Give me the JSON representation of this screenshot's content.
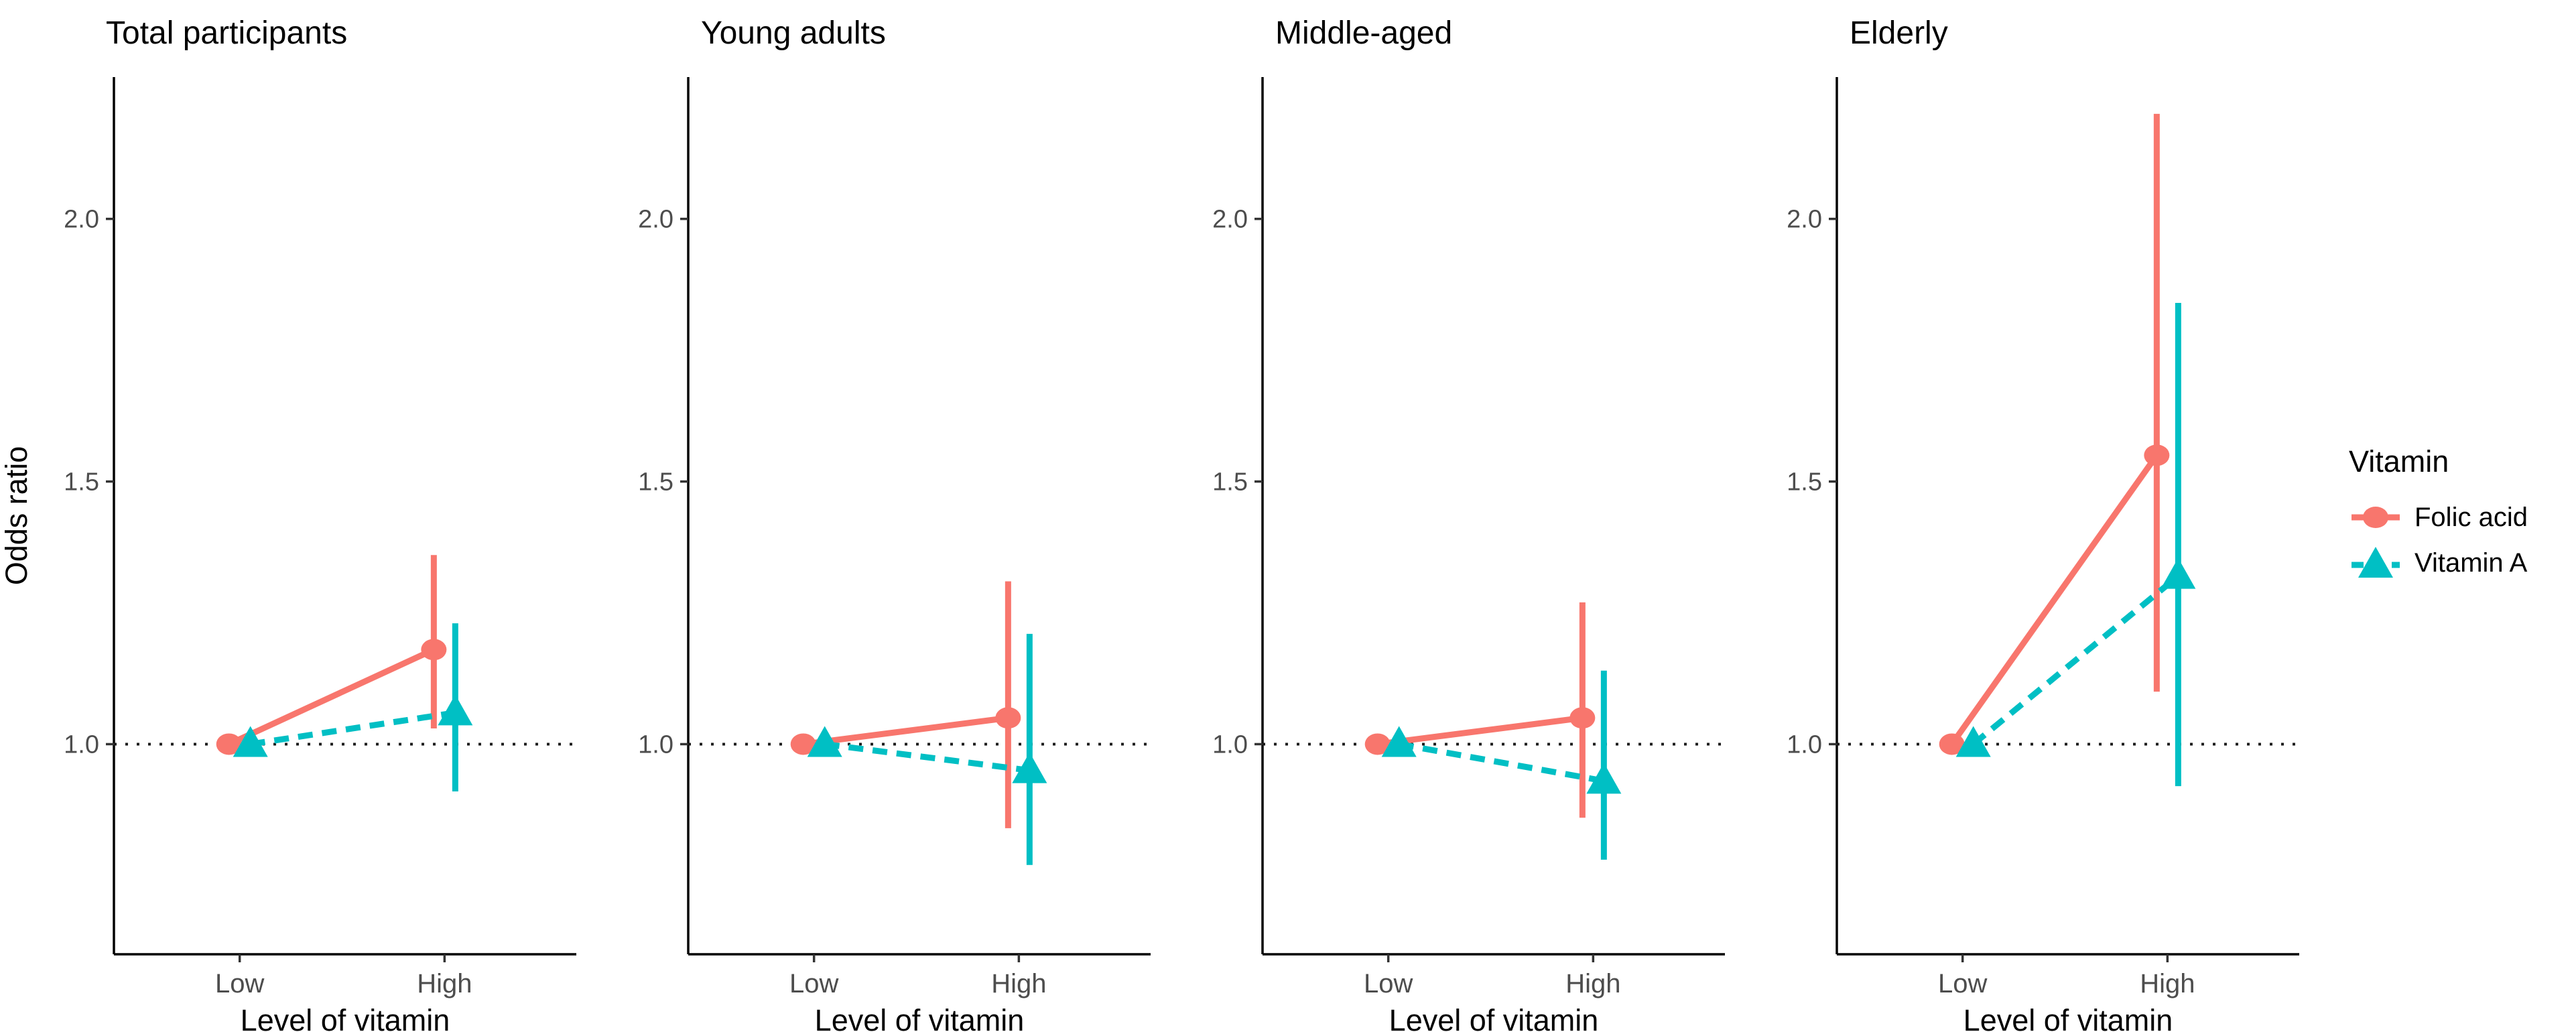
{
  "figure": {
    "background": "#FFFFFF",
    "y_axis_title": "Odds ratio",
    "x_axis_title": "Level of vitamin",
    "x_categories": [
      "Low",
      "High"
    ],
    "y_tick_labels": [
      "1.0",
      "1.5",
      "2.0"
    ],
    "legend": {
      "title": "Vitamin",
      "position": "right",
      "items": [
        {
          "label": "Folic acid",
          "color": "#F8766D",
          "marker": "circle",
          "line_style": "solid"
        },
        {
          "label": "Vitamin A",
          "color": "#00BFC4",
          "marker": "triangle",
          "line_style": "dashed"
        }
      ]
    },
    "colors": {
      "folic_acid": "#F8766D",
      "vitamin_a": "#00BFC4",
      "tick_label": "#4D4D4D",
      "axis_line": "#000000",
      "reference_line": "#1A1A1A"
    }
  },
  "chart_data": [
    {
      "type": "pointrange",
      "title": "Total participants",
      "xlabel": "Level of vitamin",
      "ylabel": "Odds ratio",
      "categories": [
        "Low",
        "High"
      ],
      "ylim": [
        0.6,
        2.27
      ],
      "yticks": [
        {
          "v": 1.0,
          "label": "1.0"
        },
        {
          "v": 1.5,
          "label": "1.5"
        },
        {
          "v": 2.0,
          "label": "2.0"
        }
      ],
      "reference_line": 1.0,
      "grid": false,
      "series": [
        {
          "name": "Folic acid",
          "color": "#F8766D",
          "marker": "circle",
          "line_style": "solid",
          "points": [
            {
              "x": "Low",
              "or": 1.0,
              "lo": null,
              "hi": null
            },
            {
              "x": "High",
              "or": 1.18,
              "lo": 1.03,
              "hi": 1.36
            }
          ]
        },
        {
          "name": "Vitamin A",
          "color": "#00BFC4",
          "marker": "triangle",
          "line_style": "dashed",
          "points": [
            {
              "x": "Low",
              "or": 1.0,
              "lo": null,
              "hi": null
            },
            {
              "x": "High",
              "or": 1.06,
              "lo": 0.91,
              "hi": 1.23
            }
          ]
        }
      ]
    },
    {
      "type": "pointrange",
      "title": "Young adults",
      "xlabel": "Level of vitamin",
      "ylabel": "",
      "categories": [
        "Low",
        "High"
      ],
      "ylim": [
        0.6,
        2.27
      ],
      "yticks": [
        {
          "v": 1.0,
          "label": "1.0"
        },
        {
          "v": 1.5,
          "label": "1.5"
        },
        {
          "v": 2.0,
          "label": "2.0"
        }
      ],
      "reference_line": 1.0,
      "grid": false,
      "series": [
        {
          "name": "Folic acid",
          "color": "#F8766D",
          "marker": "circle",
          "line_style": "solid",
          "points": [
            {
              "x": "Low",
              "or": 1.0,
              "lo": null,
              "hi": null
            },
            {
              "x": "High",
              "or": 1.05,
              "lo": 0.84,
              "hi": 1.31
            }
          ]
        },
        {
          "name": "Vitamin A",
          "color": "#00BFC4",
          "marker": "triangle",
          "line_style": "dashed",
          "points": [
            {
              "x": "Low",
              "or": 1.0,
              "lo": null,
              "hi": null
            },
            {
              "x": "High",
              "or": 0.95,
              "lo": 0.77,
              "hi": 1.21
            }
          ]
        }
      ]
    },
    {
      "type": "pointrange",
      "title": "Middle-aged",
      "xlabel": "Level of vitamin",
      "ylabel": "",
      "categories": [
        "Low",
        "High"
      ],
      "ylim": [
        0.6,
        2.27
      ],
      "yticks": [
        {
          "v": 1.0,
          "label": "1.0"
        },
        {
          "v": 1.5,
          "label": "1.5"
        },
        {
          "v": 2.0,
          "label": "2.0"
        }
      ],
      "reference_line": 1.0,
      "grid": false,
      "series": [
        {
          "name": "Folic acid",
          "color": "#F8766D",
          "marker": "circle",
          "line_style": "solid",
          "points": [
            {
              "x": "Low",
              "or": 1.0,
              "lo": null,
              "hi": null
            },
            {
              "x": "High",
              "or": 1.05,
              "lo": 0.86,
              "hi": 1.27
            }
          ]
        },
        {
          "name": "Vitamin A",
          "color": "#00BFC4",
          "marker": "triangle",
          "line_style": "dashed",
          "points": [
            {
              "x": "Low",
              "or": 1.0,
              "lo": null,
              "hi": null
            },
            {
              "x": "High",
              "or": 0.93,
              "lo": 0.78,
              "hi": 1.14
            }
          ]
        }
      ]
    },
    {
      "type": "pointrange",
      "title": "Elderly",
      "xlabel": "Level of vitamin",
      "ylabel": "",
      "categories": [
        "Low",
        "High"
      ],
      "ylim": [
        0.6,
        2.27
      ],
      "yticks": [
        {
          "v": 1.0,
          "label": "1.0"
        },
        {
          "v": 1.5,
          "label": "1.5"
        },
        {
          "v": 2.0,
          "label": "2.0"
        }
      ],
      "reference_line": 1.0,
      "grid": false,
      "series": [
        {
          "name": "Folic acid",
          "color": "#F8766D",
          "marker": "circle",
          "line_style": "solid",
          "points": [
            {
              "x": "Low",
              "or": 1.0,
              "lo": null,
              "hi": null
            },
            {
              "x": "High",
              "or": 1.55,
              "lo": 1.1,
              "hi": 2.2
            }
          ]
        },
        {
          "name": "Vitamin A",
          "color": "#00BFC4",
          "marker": "triangle",
          "line_style": "dashed",
          "points": [
            {
              "x": "Low",
              "or": 1.0,
              "lo": null,
              "hi": null
            },
            {
              "x": "High",
              "or": 1.32,
              "lo": 0.92,
              "hi": 1.84
            }
          ]
        }
      ]
    }
  ]
}
